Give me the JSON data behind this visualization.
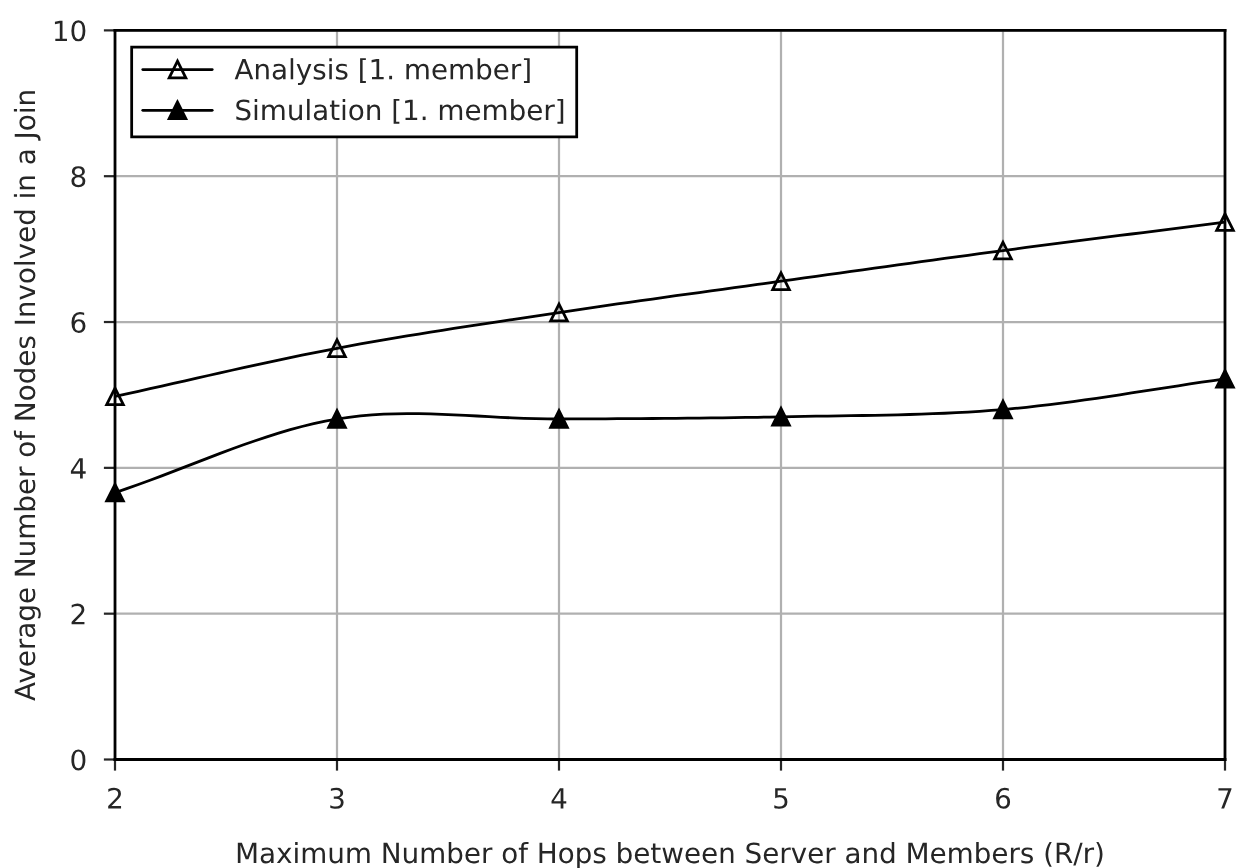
{
  "chart_data": {
    "type": "line",
    "xlabel": "Maximum Number of Hops between Server and Members (R/r)",
    "ylabel": "Average Number of Nodes Involved in a Join",
    "x": [
      2,
      3,
      4,
      5,
      6,
      7
    ],
    "series": [
      {
        "name": "Analysis [1. member]",
        "color": "#000000",
        "marker": "triangle",
        "values": [
          4.98,
          5.64,
          6.13,
          6.56,
          6.98,
          7.37
        ]
      },
      {
        "name": "Simulation [1. member]",
        "color": "#000000",
        "marker": "triangle",
        "values": [
          3.66,
          4.67,
          4.67,
          4.7,
          4.8,
          5.22
        ]
      }
    ],
    "xlim": [
      2,
      7
    ],
    "xticks": [
      2,
      3,
      4,
      5,
      6,
      7
    ],
    "ylim": [
      0,
      10
    ],
    "yticks": [
      0,
      2,
      4,
      6,
      8,
      10
    ],
    "grid": true,
    "legend": "top left",
    "line_style": "solid"
  }
}
